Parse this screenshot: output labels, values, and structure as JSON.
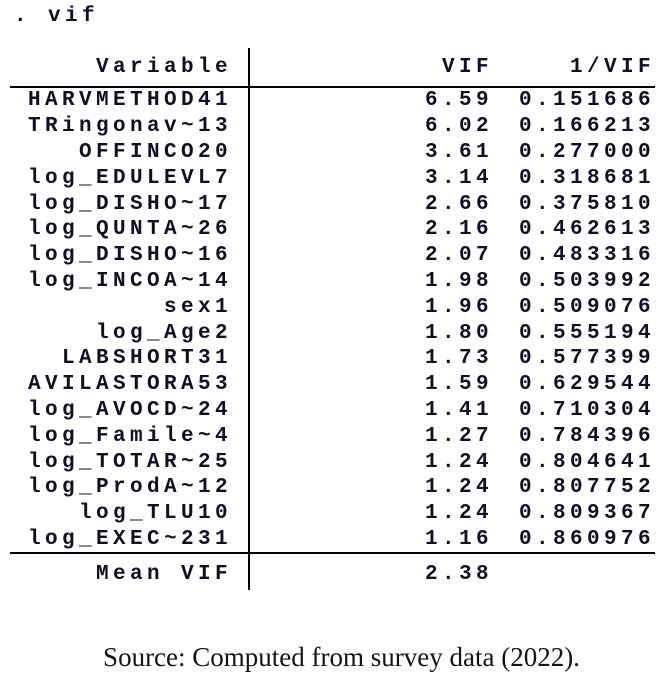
{
  "command": ". vif",
  "table": {
    "headers": {
      "variable": "Variable",
      "vif": "VIF",
      "inv_vif": "1/VIF"
    },
    "rows": [
      {
        "variable": "HARVMETHOD41",
        "vif": "6.59",
        "inv_vif": "0.151686"
      },
      {
        "variable": "TRingonav~13",
        "vif": "6.02",
        "inv_vif": "0.166213"
      },
      {
        "variable": "OFFINCO20",
        "vif": "3.61",
        "inv_vif": "0.277000"
      },
      {
        "variable": "log_EDULEVL7",
        "vif": "3.14",
        "inv_vif": "0.318681"
      },
      {
        "variable": "log_DISHO~17",
        "vif": "2.66",
        "inv_vif": "0.375810"
      },
      {
        "variable": "log_QUNTA~26",
        "vif": "2.16",
        "inv_vif": "0.462613"
      },
      {
        "variable": "log_DISHO~16",
        "vif": "2.07",
        "inv_vif": "0.483316"
      },
      {
        "variable": "log_INCOA~14",
        "vif": "1.98",
        "inv_vif": "0.503992"
      },
      {
        "variable": "sex1",
        "vif": "1.96",
        "inv_vif": "0.509076"
      },
      {
        "variable": "log_Age2",
        "vif": "1.80",
        "inv_vif": "0.555194"
      },
      {
        "variable": "LABSHORT31",
        "vif": "1.73",
        "inv_vif": "0.577399"
      },
      {
        "variable": "AVILASTORA53",
        "vif": "1.59",
        "inv_vif": "0.629544"
      },
      {
        "variable": "log_AVOCD~24",
        "vif": "1.41",
        "inv_vif": "0.710304"
      },
      {
        "variable": "log_Famile~4",
        "vif": "1.27",
        "inv_vif": "0.784396"
      },
      {
        "variable": "log_TOTAR~25",
        "vif": "1.24",
        "inv_vif": "0.804641"
      },
      {
        "variable": "log_ProdA~12",
        "vif": "1.24",
        "inv_vif": "0.807752"
      },
      {
        "variable": "log_TLU10",
        "vif": "1.24",
        "inv_vif": "0.809367"
      },
      {
        "variable": "log_EXEC~231",
        "vif": "1.16",
        "inv_vif": "0.860976"
      }
    ],
    "mean": {
      "label": "Mean VIF",
      "vif": "2.38",
      "inv_vif": ""
    }
  },
  "caption": "Source: Computed from survey data (2022).",
  "colors": {
    "ink": "#101024",
    "rule": "#000000",
    "caption": "#141414",
    "background": "#ffffff"
  }
}
